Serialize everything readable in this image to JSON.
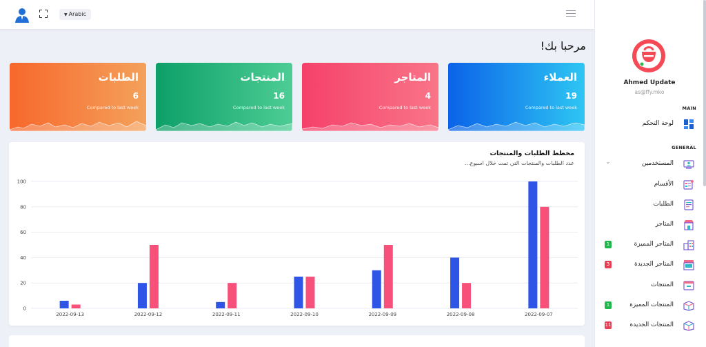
{
  "header": {
    "language": "Arabic",
    "icons": [
      "user-avatar-icon",
      "fullscreen-icon",
      "menu-icon"
    ]
  },
  "welcome": "مرحبا بك!",
  "cards": [
    {
      "key": "orders",
      "title": "الطلبات",
      "value": "6",
      "sub": "Compared to last week",
      "color": "#f7682c"
    },
    {
      "key": "products",
      "title": "المنتجات",
      "value": "16",
      "sub": "Compared to last week",
      "color": "#0d9f68"
    },
    {
      "key": "stores",
      "title": "المتاجر",
      "value": "4",
      "sub": "Compared to last week",
      "color": "#f5416a"
    },
    {
      "key": "clients",
      "title": "العملاء",
      "value": "19",
      "sub": "Compared to last week",
      "color": "#0b63e8"
    }
  ],
  "panel": {
    "title": "مخطط الطلبات والمنتجات",
    "subtitle": "عدد الطلبات والمنتجات التي تمت خلال اسبوع..."
  },
  "chart_data": {
    "type": "bar",
    "categories": [
      "2022-09-13",
      "2022-09-12",
      "2022-09-11",
      "2022-09-10",
      "2022-09-09",
      "2022-09-08",
      "2022-09-07"
    ],
    "series": [
      {
        "values": [
          6,
          20,
          5,
          25,
          30,
          40,
          100
        ],
        "color": "#2e55e6"
      },
      {
        "values": [
          3,
          50,
          20,
          25,
          50,
          20,
          80
        ],
        "color": "#f7507a"
      }
    ],
    "ylim": [
      0,
      100
    ],
    "yticks": [
      0,
      20,
      40,
      60,
      80,
      100
    ],
    "grid": true
  },
  "sidebar": {
    "user_name": "Ahmed Update",
    "user_email": "as@ffy.mko",
    "section_main": "MAIN",
    "section_general": "GENERAL",
    "items": [
      {
        "label": "لوحة التحكم",
        "icon": "dashboard-icon",
        "badge": ""
      },
      {
        "label": "المستخدمين",
        "icon": "users-icon",
        "badge": "",
        "chevron": "⌄"
      },
      {
        "label": "الأقسام",
        "icon": "categories-icon",
        "badge": ""
      },
      {
        "label": "الطلبات",
        "icon": "orders-icon",
        "badge": ""
      },
      {
        "label": "المتاجر",
        "icon": "store-icon",
        "badge": ""
      },
      {
        "label": "المتاجر المميزة",
        "icon": "featured-store-icon",
        "badge": "1",
        "badge_color": "green"
      },
      {
        "label": "المتاجر الجديدة",
        "icon": "new-store-icon",
        "badge": "3",
        "badge_color": "red"
      },
      {
        "label": "المنتجات",
        "icon": "products-icon",
        "badge": ""
      },
      {
        "label": "المنتجات المميزة",
        "icon": "featured-products-icon",
        "badge": "1",
        "badge_color": "green"
      },
      {
        "label": "المنتجات الجديدة",
        "icon": "new-products-icon",
        "badge": "11",
        "badge_color": "red"
      }
    ]
  }
}
